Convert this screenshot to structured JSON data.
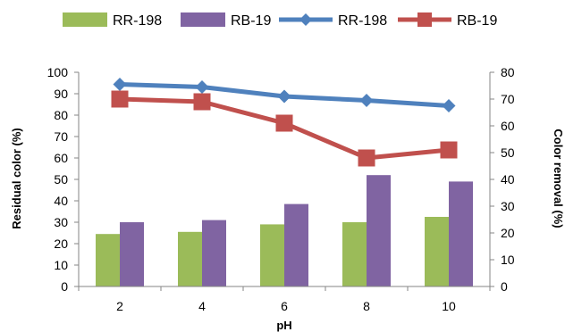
{
  "chart_data": {
    "type": "bar+line",
    "title": "",
    "xlabel": "pH",
    "ylabel": "Residual color (%)",
    "y2label": "Color removal (%)",
    "categories": [
      "2",
      "4",
      "6",
      "8",
      "10"
    ],
    "ylim": [
      0,
      100
    ],
    "y2lim": [
      0,
      80
    ],
    "yticks": [
      0,
      10,
      20,
      30,
      40,
      50,
      60,
      70,
      80,
      90,
      100
    ],
    "y2ticks": [
      0,
      10,
      20,
      30,
      40,
      50,
      60,
      70,
      80
    ],
    "grid": false,
    "legend_position": "top",
    "series": [
      {
        "name": "RR-198",
        "kind": "bar",
        "axis": "left",
        "color": "#9BBB59",
        "values": [
          24.5,
          25.5,
          29,
          30,
          32.5
        ]
      },
      {
        "name": "RB-19",
        "kind": "bar",
        "axis": "left",
        "color": "#8064A2",
        "values": [
          30,
          31,
          38.5,
          52,
          49
        ]
      },
      {
        "name": "RR-198",
        "kind": "line",
        "axis": "right",
        "color": "#4F81BD",
        "marker": "diamond",
        "values": [
          75.5,
          74.5,
          71,
          69.5,
          67.5
        ]
      },
      {
        "name": "RB-19",
        "kind": "line",
        "axis": "right",
        "color": "#C0504D",
        "marker": "square",
        "values": [
          70,
          69,
          61,
          48,
          51
        ]
      }
    ]
  }
}
